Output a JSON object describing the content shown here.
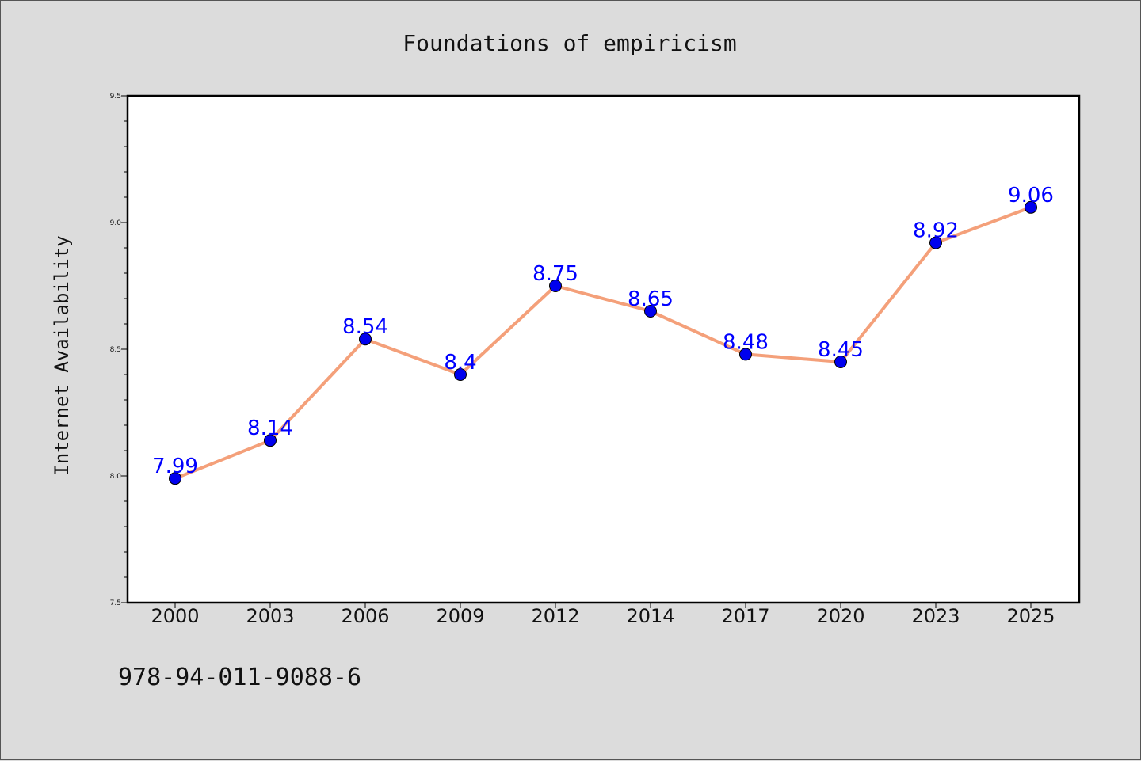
{
  "chart_data": {
    "type": "line",
    "title": "Foundations of empiricism",
    "xlabel": "",
    "ylabel": "Internet Availability",
    "categories": [
      "2000",
      "2003",
      "2006",
      "2009",
      "2012",
      "2014",
      "2017",
      "2020",
      "2023",
      "2025"
    ],
    "series": [
      {
        "values": [
          7.99,
          8.14,
          8.54,
          8.4,
          8.75,
          8.65,
          8.48,
          8.45,
          8.92,
          9.06
        ],
        "labels": [
          "7.99",
          "8.14",
          "8.54",
          "8.4",
          "8.75",
          "8.65",
          "8.48",
          "8.45",
          "8.92",
          "9.06"
        ],
        "line_color": "#f4a07a",
        "marker_color": "#0000ee"
      }
    ],
    "ylim": [
      7.5,
      9.5
    ],
    "yticks": [
      "7.5",
      "8.0",
      "8.5",
      "9.0",
      "9.5"
    ],
    "grid": false,
    "data_label_color": "#0000ff"
  },
  "footer": {
    "code": "978-94-011-9088-6"
  },
  "colors": {
    "background": "#dcdcdc",
    "plot_background": "#ffffff"
  }
}
